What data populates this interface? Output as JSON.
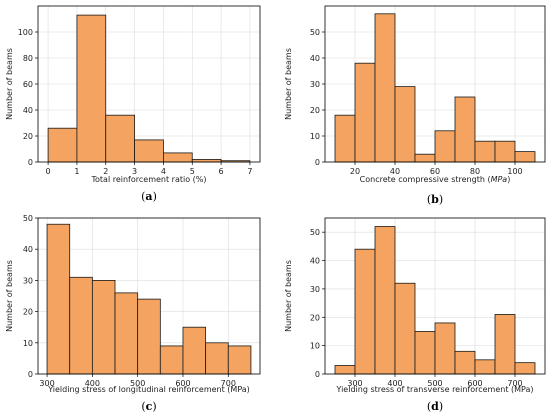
{
  "chart_data": [
    {
      "type": "histogram",
      "panel_label": "(a)",
      "xlabel": "Total reinforcement ratio (%)",
      "ylabel": "Number of beams",
      "xlim": [
        -0.35,
        7.35
      ],
      "ylim": [
        0,
        120
      ],
      "xticks": [
        0,
        1,
        2,
        3,
        4,
        5,
        6,
        7
      ],
      "yticks": [
        0,
        20,
        40,
        60,
        80,
        100
      ],
      "bins": [
        {
          "x0": 0,
          "x1": 1,
          "count": 26
        },
        {
          "x0": 1,
          "x1": 2,
          "count": 113
        },
        {
          "x0": 2,
          "x1": 3,
          "count": 36
        },
        {
          "x0": 3,
          "x1": 4,
          "count": 17
        },
        {
          "x0": 4,
          "x1": 5,
          "count": 7
        },
        {
          "x0": 5,
          "x1": 6,
          "count": 2
        },
        {
          "x0": 6,
          "x1": 7,
          "count": 1
        }
      ],
      "grid": true
    },
    {
      "type": "histogram",
      "panel_label": "(b)",
      "xlabel": "Concrete compressive strength (MPa)",
      "ylabel": "Number of beams",
      "xlim": [
        5,
        115
      ],
      "ylim": [
        0,
        60
      ],
      "xticks": [
        20,
        40,
        60,
        80,
        100
      ],
      "yticks": [
        0,
        10,
        20,
        30,
        40,
        50
      ],
      "bins": [
        {
          "x0": 10,
          "x1": 20,
          "count": 18
        },
        {
          "x0": 20,
          "x1": 30,
          "count": 38
        },
        {
          "x0": 30,
          "x1": 40,
          "count": 57
        },
        {
          "x0": 40,
          "x1": 50,
          "count": 29
        },
        {
          "x0": 50,
          "x1": 60,
          "count": 3
        },
        {
          "x0": 60,
          "x1": 70,
          "count": 12
        },
        {
          "x0": 70,
          "x1": 80,
          "count": 25
        },
        {
          "x0": 80,
          "x1": 90,
          "count": 8
        },
        {
          "x0": 90,
          "x1": 100,
          "count": 8
        },
        {
          "x0": 100,
          "x1": 110,
          "count": 4
        }
      ],
      "grid": true
    },
    {
      "type": "histogram",
      "panel_label": "(c)",
      "xlabel": "Yielding stress of longitudinal reinforcement (MPa)",
      "ylabel": "Number of beams",
      "xlim": [
        280,
        770
      ],
      "ylim": [
        0,
        50
      ],
      "xticks": [
        300,
        400,
        500,
        600,
        700
      ],
      "yticks": [
        0,
        10,
        20,
        30,
        40,
        50
      ],
      "bins": [
        {
          "x0": 300,
          "x1": 350,
          "count": 48
        },
        {
          "x0": 350,
          "x1": 400,
          "count": 31
        },
        {
          "x0": 400,
          "x1": 450,
          "count": 30
        },
        {
          "x0": 450,
          "x1": 500,
          "count": 26
        },
        {
          "x0": 500,
          "x1": 550,
          "count": 24
        },
        {
          "x0": 550,
          "x1": 600,
          "count": 9
        },
        {
          "x0": 600,
          "x1": 650,
          "count": 15
        },
        {
          "x0": 650,
          "x1": 700,
          "count": 10
        },
        {
          "x0": 700,
          "x1": 750,
          "count": 9
        }
      ],
      "grid": true
    },
    {
      "type": "histogram",
      "panel_label": "(d)",
      "xlabel": "Yielding stress of transverse reinforcement (MPa)",
      "ylabel": "Number of beams",
      "xlim": [
        225,
        775
      ],
      "ylim": [
        0,
        55
      ],
      "xticks": [
        300,
        400,
        500,
        600,
        700
      ],
      "yticks": [
        0,
        10,
        20,
        30,
        40,
        50
      ],
      "bins": [
        {
          "x0": 250,
          "x1": 300,
          "count": 3
        },
        {
          "x0": 300,
          "x1": 350,
          "count": 44
        },
        {
          "x0": 350,
          "x1": 400,
          "count": 52
        },
        {
          "x0": 400,
          "x1": 450,
          "count": 32
        },
        {
          "x0": 450,
          "x1": 500,
          "count": 15
        },
        {
          "x0": 500,
          "x1": 550,
          "count": 18
        },
        {
          "x0": 550,
          "x1": 600,
          "count": 8
        },
        {
          "x0": 600,
          "x1": 650,
          "count": 5
        },
        {
          "x0": 650,
          "x1": 700,
          "count": 21
        },
        {
          "x0": 700,
          "x1": 750,
          "count": 4
        }
      ],
      "grid": true
    }
  ],
  "colors": {
    "bar_fill": "#f4a460",
    "bar_edge": "#1a1a1a"
  }
}
